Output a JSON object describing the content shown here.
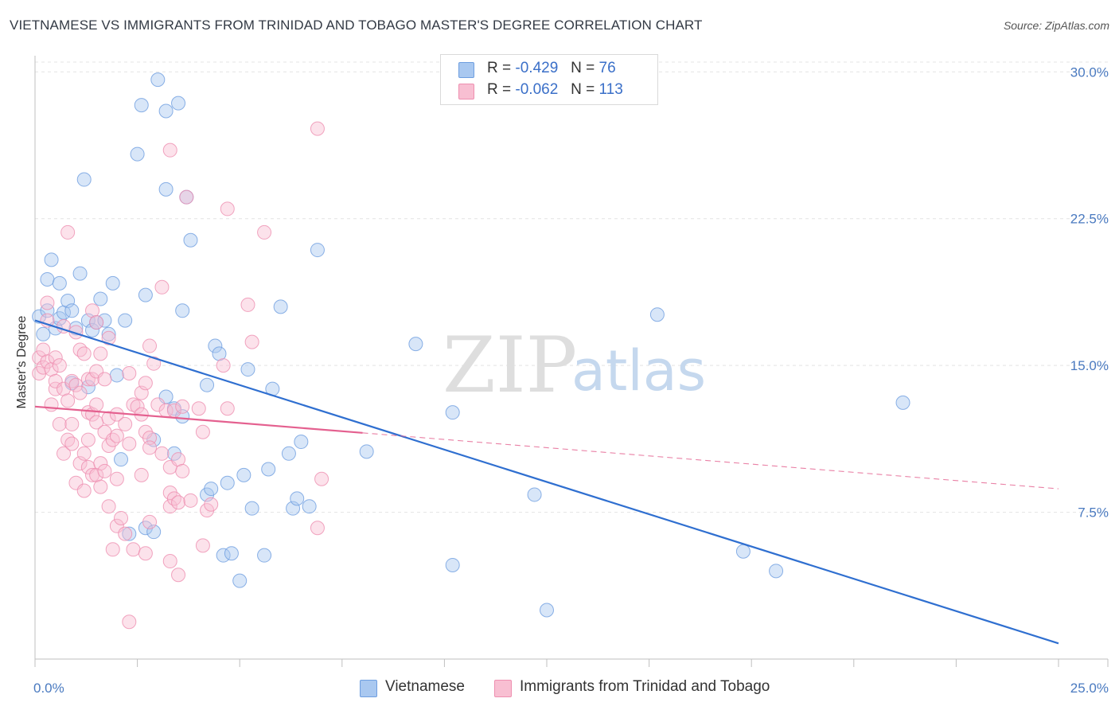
{
  "title": "VIETNAMESE VS IMMIGRANTS FROM TRINIDAD AND TOBAGO MASTER'S DEGREE CORRELATION CHART",
  "source": "Source: ZipAtlas.com",
  "watermark": {
    "zip": "ZIP",
    "atlas": "atlas"
  },
  "legend": {
    "r_label": "R =",
    "n_label": "N =",
    "rows": [
      {
        "r": "-0.429",
        "n": "76",
        "color": "#a9c8f0",
        "border": "#6e9ee0"
      },
      {
        "r": "-0.062",
        "n": "113",
        "color": "#f8bfd2",
        "border": "#ee8fb0"
      }
    ]
  },
  "bottom_legend": [
    {
      "label": "Vietnamese",
      "color": "#a9c8f0",
      "border": "#6e9ee0"
    },
    {
      "label": "Immigrants from Trinidad and Tobago",
      "color": "#f8bfd2",
      "border": "#ee8fb0"
    }
  ],
  "chart_data": {
    "type": "scatter",
    "title": "VIETNAMESE VS IMMIGRANTS FROM TRINIDAD AND TOBAGO MASTER'S DEGREE CORRELATION CHART",
    "xlabel": "",
    "ylabel": "Master's Degree",
    "xlim": [
      0,
      25
    ],
    "ylim": [
      0,
      30.5
    ],
    "x_tick_labels": [
      "0.0%",
      "25.0%"
    ],
    "y_ticks": [
      7.5,
      15.0,
      22.5,
      30.0
    ],
    "y_tick_labels": [
      "7.5%",
      "15.0%",
      "22.5%",
      "30.0%"
    ],
    "grid": "horizontal dashed",
    "series": [
      {
        "name": "Vietnamese",
        "color": "#6e9ee0",
        "fill": "#a9c8f0",
        "trend": {
          "x": [
            0,
            25
          ],
          "y": [
            17.3,
            0.8
          ],
          "color": "#2f6fd0",
          "dashed_from": null
        },
        "points": [
          [
            0.1,
            17.5
          ],
          [
            0.2,
            16.6
          ],
          [
            0.3,
            17.8
          ],
          [
            0.3,
            19.4
          ],
          [
            0.4,
            20.4
          ],
          [
            0.5,
            16.9
          ],
          [
            0.6,
            19.2
          ],
          [
            0.6,
            17.4
          ],
          [
            0.7,
            17.7
          ],
          [
            0.8,
            18.3
          ],
          [
            0.9,
            17.8
          ],
          [
            1.0,
            16.9
          ],
          [
            1.1,
            19.7
          ],
          [
            1.2,
            24.5
          ],
          [
            1.3,
            17.3
          ],
          [
            1.4,
            16.8
          ],
          [
            1.5,
            17.2
          ],
          [
            1.6,
            18.4
          ],
          [
            1.7,
            17.3
          ],
          [
            1.8,
            16.6
          ],
          [
            1.9,
            19.2
          ],
          [
            2.0,
            14.5
          ],
          [
            2.1,
            10.2
          ],
          [
            2.2,
            17.3
          ],
          [
            2.3,
            6.4
          ],
          [
            2.5,
            25.8
          ],
          [
            2.6,
            28.3
          ],
          [
            2.7,
            6.7
          ],
          [
            2.7,
            18.6
          ],
          [
            2.9,
            6.5
          ],
          [
            2.9,
            11.2
          ],
          [
            3.0,
            29.6
          ],
          [
            3.2,
            28.0
          ],
          [
            3.2,
            24.0
          ],
          [
            3.2,
            13.4
          ],
          [
            3.4,
            10.5
          ],
          [
            3.4,
            12.8
          ],
          [
            3.5,
            28.4
          ],
          [
            3.6,
            12.4
          ],
          [
            3.6,
            17.8
          ],
          [
            3.7,
            23.6
          ],
          [
            3.8,
            21.4
          ],
          [
            4.2,
            8.4
          ],
          [
            4.2,
            14.0
          ],
          [
            4.3,
            8.7
          ],
          [
            4.4,
            16.0
          ],
          [
            4.5,
            15.6
          ],
          [
            4.6,
            5.3
          ],
          [
            4.7,
            9.0
          ],
          [
            4.8,
            5.4
          ],
          [
            5.0,
            4.0
          ],
          [
            5.1,
            9.4
          ],
          [
            5.2,
            14.8
          ],
          [
            5.3,
            7.7
          ],
          [
            5.6,
            5.3
          ],
          [
            5.7,
            9.7
          ],
          [
            5.8,
            13.8
          ],
          [
            6.0,
            18.0
          ],
          [
            6.2,
            10.5
          ],
          [
            6.3,
            7.7
          ],
          [
            6.4,
            8.2
          ],
          [
            6.5,
            11.1
          ],
          [
            6.7,
            7.8
          ],
          [
            6.9,
            20.9
          ],
          [
            8.1,
            10.6
          ],
          [
            9.3,
            16.1
          ],
          [
            10.2,
            12.6
          ],
          [
            10.2,
            4.8
          ],
          [
            12.2,
            8.4
          ],
          [
            12.5,
            2.5
          ],
          [
            15.2,
            17.6
          ],
          [
            17.3,
            5.5
          ],
          [
            18.1,
            4.5
          ],
          [
            21.2,
            13.1
          ],
          [
            1.3,
            13.9
          ],
          [
            0.9,
            14.1
          ]
        ]
      },
      {
        "name": "Immigrants from Trinidad and Tobago",
        "color": "#ee8fb0",
        "fill": "#f8bfd2",
        "trend": {
          "x": [
            0,
            25
          ],
          "y": [
            12.9,
            8.7
          ],
          "color": "#e4608f",
          "dashed_from": 8.0
        },
        "points": [
          [
            0.1,
            15.4
          ],
          [
            0.1,
            14.6
          ],
          [
            0.2,
            15.8
          ],
          [
            0.2,
            14.9
          ],
          [
            0.3,
            18.2
          ],
          [
            0.3,
            17.3
          ],
          [
            0.3,
            15.2
          ],
          [
            0.4,
            14.8
          ],
          [
            0.4,
            13.0
          ],
          [
            0.5,
            15.4
          ],
          [
            0.5,
            13.8
          ],
          [
            0.5,
            14.2
          ],
          [
            0.6,
            12.0
          ],
          [
            0.6,
            15.0
          ],
          [
            0.7,
            13.8
          ],
          [
            0.7,
            10.5
          ],
          [
            0.7,
            17.0
          ],
          [
            0.8,
            21.8
          ],
          [
            0.8,
            13.2
          ],
          [
            0.8,
            11.2
          ],
          [
            0.9,
            14.2
          ],
          [
            0.9,
            12.0
          ],
          [
            0.9,
            11.0
          ],
          [
            1.0,
            14.0
          ],
          [
            1.0,
            9.0
          ],
          [
            1.0,
            16.7
          ],
          [
            1.1,
            15.8
          ],
          [
            1.1,
            13.6
          ],
          [
            1.1,
            10.0
          ],
          [
            1.2,
            15.6
          ],
          [
            1.2,
            8.6
          ],
          [
            1.2,
            10.5
          ],
          [
            1.3,
            14.3
          ],
          [
            1.3,
            12.6
          ],
          [
            1.3,
            11.2
          ],
          [
            1.3,
            9.8
          ],
          [
            1.4,
            17.8
          ],
          [
            1.4,
            14.3
          ],
          [
            1.4,
            12.5
          ],
          [
            1.4,
            9.4
          ],
          [
            1.5,
            17.2
          ],
          [
            1.5,
            14.7
          ],
          [
            1.5,
            13.0
          ],
          [
            1.5,
            12.1
          ],
          [
            1.5,
            9.4
          ],
          [
            1.6,
            15.6
          ],
          [
            1.6,
            10.0
          ],
          [
            1.6,
            8.8
          ],
          [
            1.7,
            14.3
          ],
          [
            1.7,
            11.6
          ],
          [
            1.7,
            9.6
          ],
          [
            1.8,
            16.4
          ],
          [
            1.8,
            12.3
          ],
          [
            1.8,
            10.9
          ],
          [
            1.8,
            7.8
          ],
          [
            1.9,
            11.2
          ],
          [
            1.9,
            5.6
          ],
          [
            2.0,
            12.5
          ],
          [
            2.0,
            11.4
          ],
          [
            2.0,
            9.2
          ],
          [
            2.0,
            6.8
          ],
          [
            2.1,
            7.2
          ],
          [
            2.2,
            12.0
          ],
          [
            2.2,
            6.4
          ],
          [
            2.3,
            14.6
          ],
          [
            2.3,
            11.0
          ],
          [
            2.3,
            1.9
          ],
          [
            2.4,
            13.0
          ],
          [
            2.4,
            5.6
          ],
          [
            2.5,
            12.9
          ],
          [
            2.6,
            13.6
          ],
          [
            2.6,
            12.5
          ],
          [
            2.6,
            9.4
          ],
          [
            2.7,
            14.1
          ],
          [
            2.7,
            11.6
          ],
          [
            2.7,
            5.4
          ],
          [
            2.8,
            16.0
          ],
          [
            2.8,
            11.3
          ],
          [
            2.8,
            10.8
          ],
          [
            2.8,
            7.0
          ],
          [
            2.9,
            15.1
          ],
          [
            3.0,
            13.0
          ],
          [
            3.1,
            19.0
          ],
          [
            3.1,
            10.5
          ],
          [
            3.2,
            12.7
          ],
          [
            3.3,
            26.0
          ],
          [
            3.3,
            9.8
          ],
          [
            3.3,
            8.5
          ],
          [
            3.3,
            7.8
          ],
          [
            3.3,
            5.0
          ],
          [
            3.4,
            12.7
          ],
          [
            3.4,
            8.2
          ],
          [
            3.5,
            10.2
          ],
          [
            3.5,
            8.0
          ],
          [
            3.5,
            4.3
          ],
          [
            3.6,
            12.9
          ],
          [
            3.6,
            9.6
          ],
          [
            3.7,
            23.6
          ],
          [
            3.8,
            8.1
          ],
          [
            4.0,
            12.8
          ],
          [
            4.1,
            11.6
          ],
          [
            4.1,
            5.8
          ],
          [
            4.2,
            7.6
          ],
          [
            4.3,
            7.9
          ],
          [
            4.6,
            15.0
          ],
          [
            4.7,
            12.8
          ],
          [
            4.7,
            23.0
          ],
          [
            5.2,
            18.1
          ],
          [
            5.3,
            16.2
          ],
          [
            5.6,
            21.8
          ],
          [
            6.9,
            27.1
          ],
          [
            6.9,
            6.7
          ],
          [
            7.0,
            9.2
          ]
        ]
      }
    ]
  }
}
